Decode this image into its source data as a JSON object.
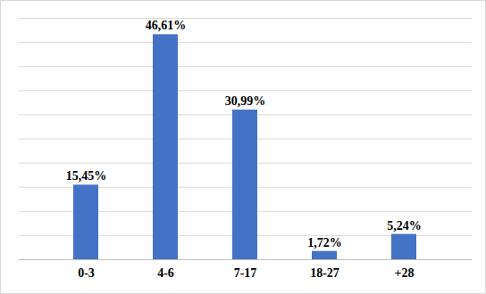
{
  "chart_data": {
    "type": "bar",
    "categories": [
      "0-3",
      "4-6",
      "7-17",
      "18-27",
      "+28"
    ],
    "values": [
      15.45,
      46.61,
      30.99,
      1.72,
      5.24
    ],
    "value_labels": [
      "15,45%",
      "46,61%",
      "30,99%",
      "1,72%",
      "5,24%"
    ],
    "color": "#4472c4",
    "ylim": [
      0,
      50
    ],
    "yticks": [
      0,
      5,
      10,
      15,
      20,
      25,
      30,
      35,
      40,
      45,
      50
    ],
    "grid": true,
    "data_labels": true,
    "tick_labels": "x"
  }
}
